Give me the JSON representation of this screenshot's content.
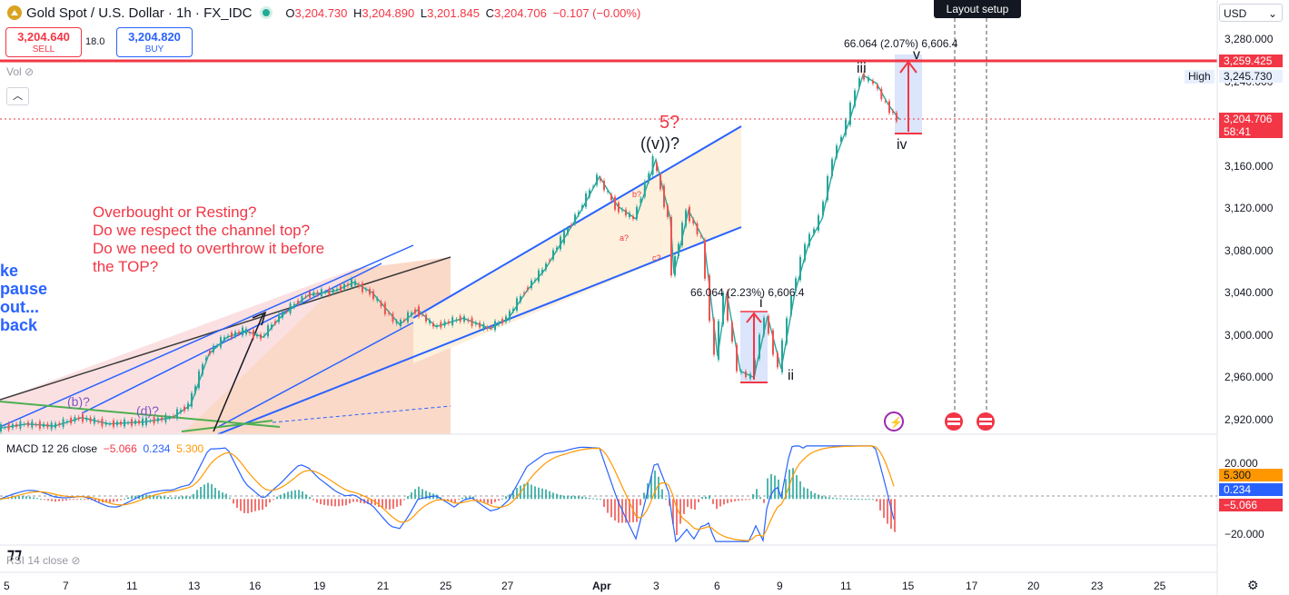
{
  "header": {
    "title": "Gold Spot / U.S. Dollar · 1h · FX_IDC",
    "ohlc": [
      {
        "k": "O",
        "v": "3,204.730"
      },
      {
        "k": "H",
        "v": "3,204.890"
      },
      {
        "k": "L",
        "v": "3,201.845"
      },
      {
        "k": "C",
        "v": "3,204.706"
      },
      {
        "k": "",
        "v": "−0.107 (−0.00%)"
      }
    ]
  },
  "trade": {
    "sell_price": "3,204.640",
    "sell_label": "SELL",
    "buy_price": "3,204.820",
    "buy_label": "BUY",
    "spread": "18.0"
  },
  "toolbar": {
    "vol_label": "Vol",
    "layout_setup": "Layout setup",
    "currency": "USD",
    "collapse_icon": "chevron-up-icon"
  },
  "chart_data": {
    "type": "candlestick",
    "price_axis": {
      "ticks": [
        "3,280.000",
        "3,240.000",
        "3,200.000",
        "3,160.000",
        "3,120.000",
        "3,080.000",
        "3,040.000",
        "3,000.000",
        "2,960.000",
        "2,920.000"
      ],
      "values": [
        3280,
        3240,
        3200,
        3160,
        3120,
        3080,
        3040,
        3000,
        2960,
        2920
      ],
      "range": [
        2906,
        3290
      ]
    },
    "time_axis": {
      "ticks": [
        "5",
        "7",
        "11",
        "13",
        "16",
        "19",
        "21",
        "25",
        "27",
        "Apr",
        "3",
        "6",
        "9",
        "11",
        "15",
        "17",
        "20",
        "23",
        "25"
      ]
    },
    "price_labels": [
      {
        "name": "resistance",
        "text": "3,259.425",
        "color": "#f23645"
      },
      {
        "name": "high",
        "prefix": "High",
        "text": "3,245.730",
        "color": "#e8f0fe"
      },
      {
        "name": "last",
        "text": "3,204.706",
        "sub": "58:41",
        "color": "#f23645"
      }
    ],
    "price_path": [
      [
        0,
        2912
      ],
      [
        30,
        2916
      ],
      [
        60,
        2914
      ],
      [
        90,
        2922
      ],
      [
        120,
        2916
      ],
      [
        160,
        2918
      ],
      [
        190,
        2922
      ],
      [
        210,
        2934
      ],
      [
        230,
        2982
      ],
      [
        250,
        2998
      ],
      [
        270,
        3004
      ],
      [
        290,
        2998
      ],
      [
        310,
        3018
      ],
      [
        340,
        3038
      ],
      [
        370,
        3042
      ],
      [
        390,
        3050
      ],
      [
        410,
        3040
      ],
      [
        440,
        3010
      ],
      [
        460,
        3024
      ],
      [
        480,
        3008
      ],
      [
        510,
        3016
      ],
      [
        540,
        3006
      ],
      [
        560,
        3016
      ],
      [
        580,
        3042
      ],
      [
        600,
        3062
      ],
      [
        620,
        3090
      ],
      [
        640,
        3118
      ],
      [
        660,
        3150
      ],
      [
        680,
        3122
      ],
      [
        700,
        3110
      ],
      [
        722,
        3166
      ],
      [
        738,
        3110
      ],
      [
        742,
        3058
      ],
      [
        758,
        3118
      ],
      [
        775,
        3090
      ],
      [
        790,
        2980
      ],
      [
        800,
        3040
      ],
      [
        815,
        2966
      ],
      [
        830,
        2960
      ],
      [
        845,
        3018
      ],
      [
        860,
        2968
      ],
      [
        875,
        3040
      ],
      [
        890,
        3086
      ],
      [
        905,
        3110
      ],
      [
        920,
        3168
      ],
      [
        935,
        3202
      ],
      [
        950,
        3246
      ],
      [
        965,
        3238
      ],
      [
        978,
        3218
      ],
      [
        990,
        3204
      ]
    ],
    "annotations": {
      "note": [
        "Overbought or Resting?",
        "Do we respect the channel top?",
        "Do we need to overthrow it before",
        "the TOP?"
      ],
      "blue_note": [
        "ke",
        "pause",
        "out...",
        "back"
      ],
      "wave_5": "5?",
      "wave_v_major": "((v))?",
      "wave_b": "(b)?",
      "wave_d": "(d)?",
      "wave_a_small": "a?",
      "wave_c_small": "c?",
      "wave_b_small": "b?",
      "wave_i": "i",
      "wave_ii": "ii",
      "wave_iii": "iii",
      "wave_iv": "iv",
      "wave_v": "v",
      "measure_1": "66.064 (2.23%) 6,606.4",
      "measure_2": "66.064 (2.07%) 6,606.4"
    },
    "macd": {
      "label": "MACD 12 26 close",
      "values": [
        "−5.066",
        "0.234",
        "5.300"
      ],
      "value_colors": [
        "#f23645",
        "#2962ff",
        "#ff9800"
      ],
      "axis_ticks": [
        "20.000",
        "−20.000"
      ],
      "tick_values": [
        20,
        -20
      ],
      "range": [
        -25,
        32
      ]
    },
    "rsi_label": "RSI 14 close"
  }
}
